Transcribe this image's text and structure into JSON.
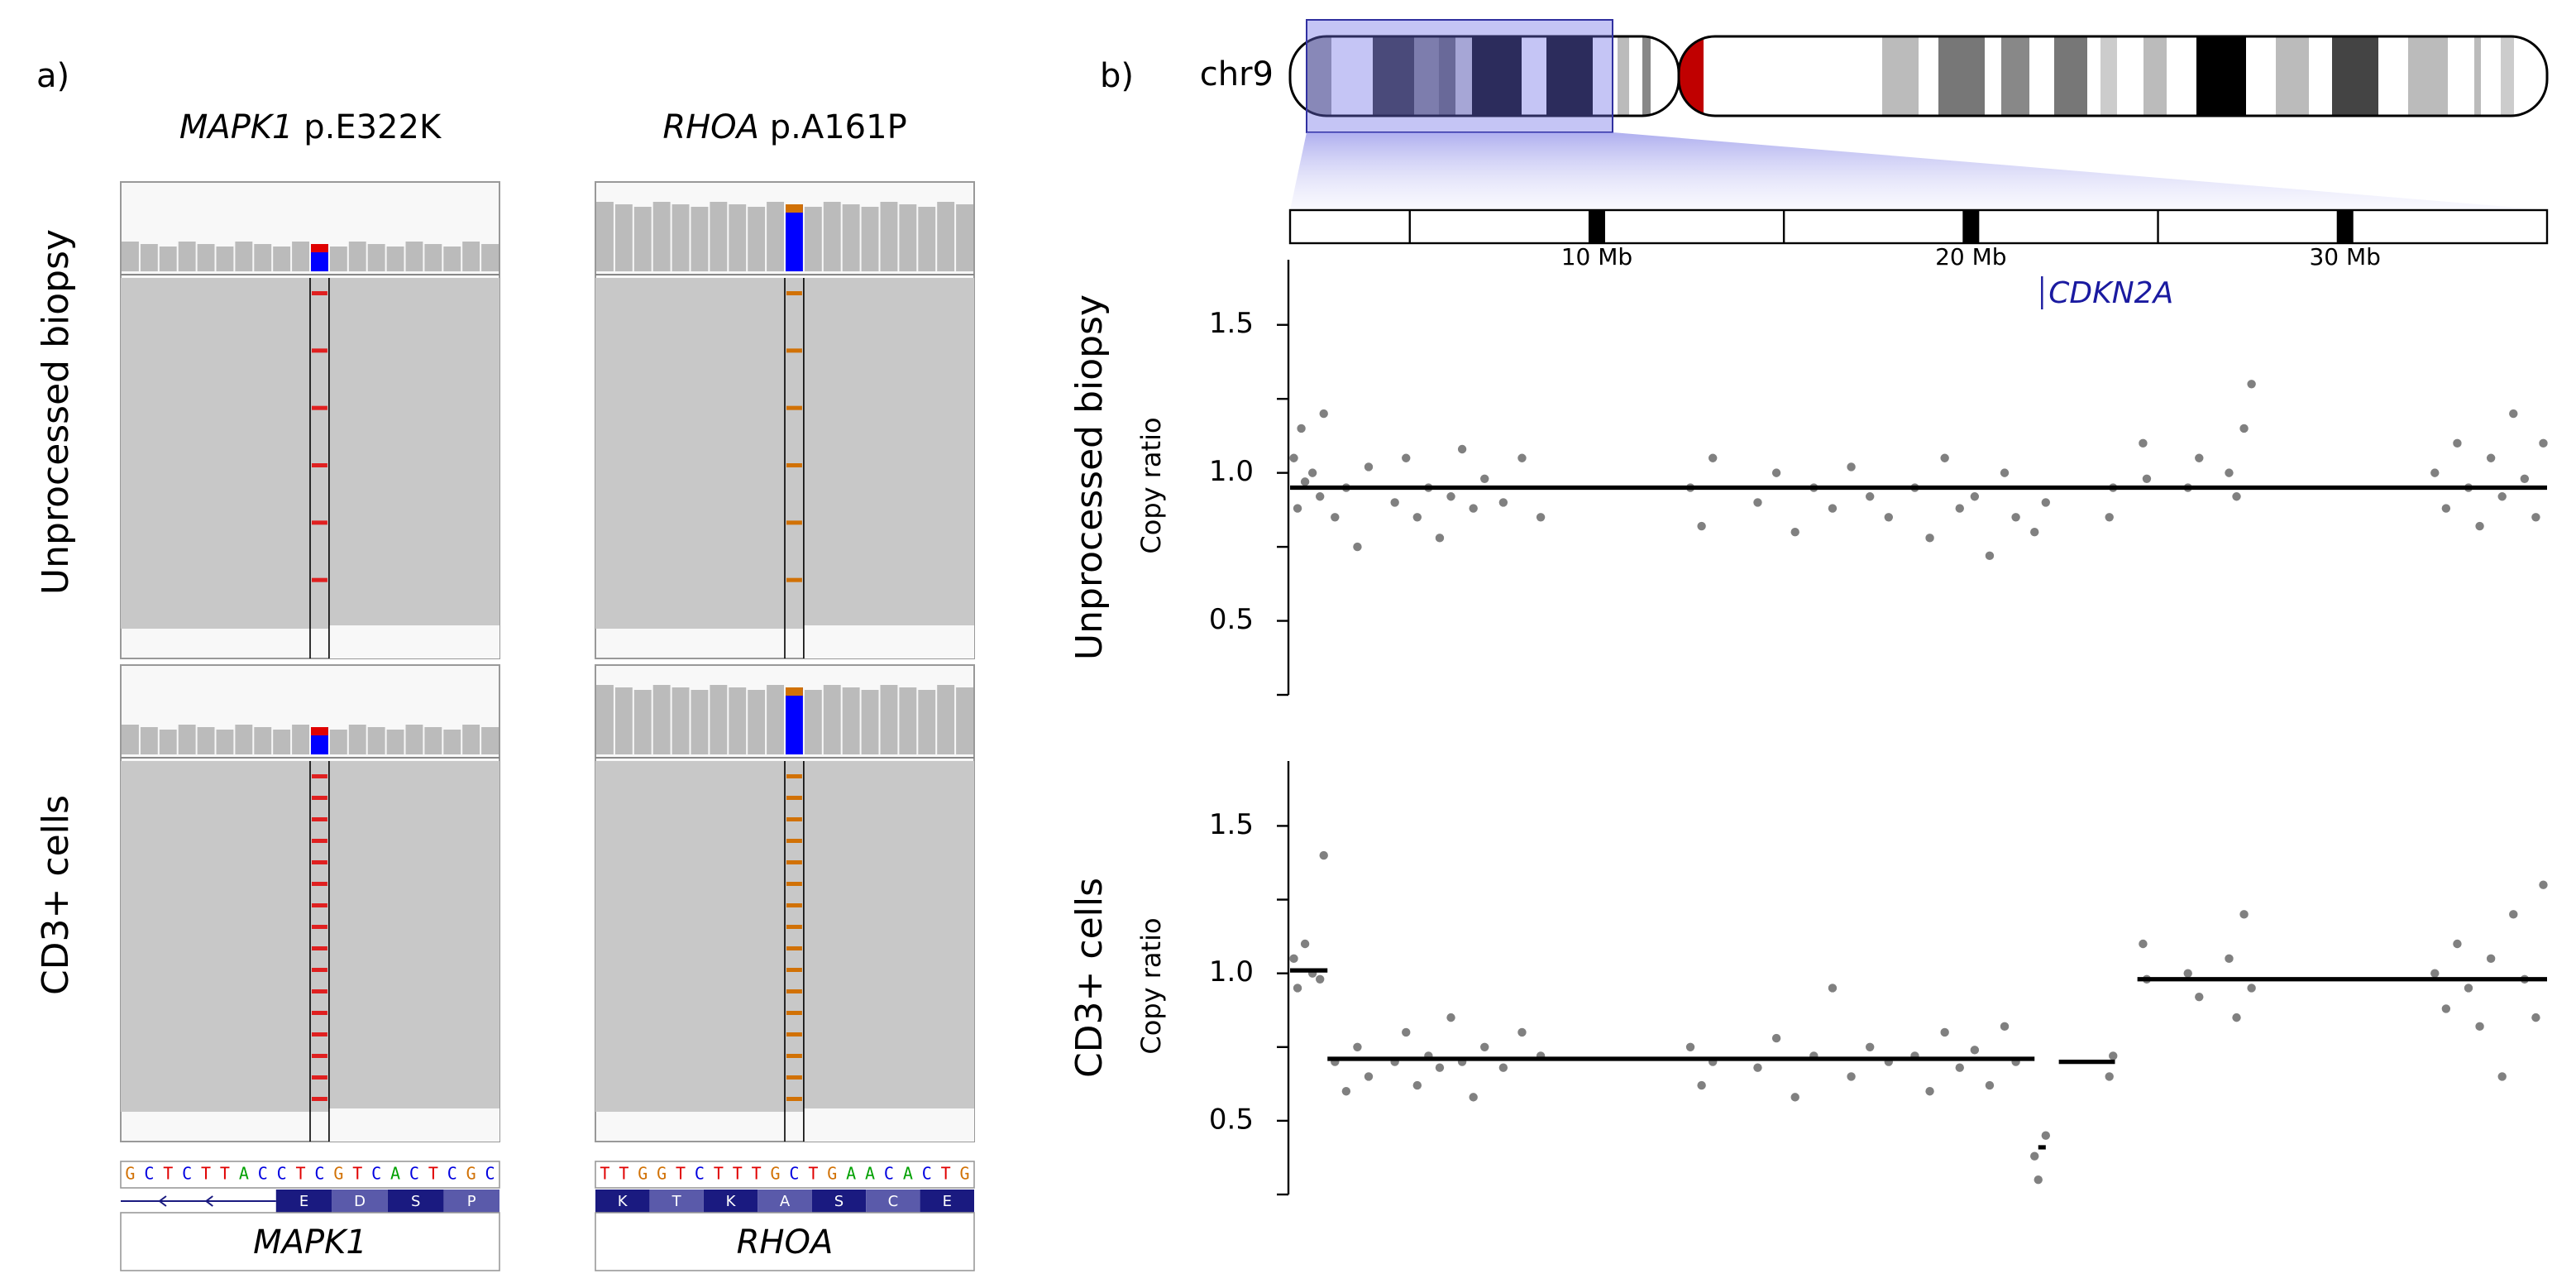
{
  "panel_a": {
    "label": "a)",
    "rows": [
      "Unprocessed biopsy",
      "CD3+ cells"
    ],
    "base_colors": {
      "A": "#00a000",
      "C": "#0000e0",
      "G": "#d17105",
      "T": "#e00000"
    },
    "genes": [
      {
        "gene": "MAPK1",
        "mutation": "p.E322K",
        "sequence": "GCTCTTACCTCGTCACTCGC",
        "amino_acids": [
          "E",
          "D",
          "S",
          "P"
        ],
        "track_label": "MAPK1"
      },
      {
        "gene": "RHOA",
        "mutation": "p.A161P",
        "sequence": "TTGGTCTTTGCTGAACACTG",
        "amino_acids": [
          "K",
          "T",
          "K",
          "A",
          "S",
          "C",
          "E"
        ],
        "track_label": "RHOA"
      }
    ]
  },
  "panel_b": {
    "label": "b)",
    "chromosome": "chr9",
    "ruler": {
      "xlim": [
        1.8,
        35.4
      ],
      "xticks": [
        {
          "value": 10,
          "label": "10 Mb"
        },
        {
          "value": 20,
          "label": "20 Mb"
        },
        {
          "value": 30,
          "label": "30 Mb"
        }
      ],
      "xminor": [
        5,
        15,
        25
      ]
    },
    "gene": {
      "label": "CDKN2A",
      "x": 21.9
    }
  },
  "chart_data": [
    {
      "type": "scatter",
      "title": "Unprocessed biopsy",
      "y_label": "Copy ratio",
      "color": "#808080",
      "xlim": [
        1.8,
        35.4
      ],
      "ylim": [
        0.25,
        1.72
      ],
      "yticks": [
        0.5,
        {
          "value": 1,
          "label": "1.0"
        },
        1.5
      ],
      "yminor": [
        0.25,
        0.75,
        1.25
      ],
      "x": [
        1.9,
        2.0,
        2.1,
        2.2,
        2.4,
        2.6,
        2.7,
        3.0,
        3.3,
        3.6,
        3.9,
        4.6,
        4.9,
        5.2,
        5.5,
        5.8,
        6.1,
        6.4,
        6.7,
        7.0,
        7.5,
        8.0,
        8.5,
        12.5,
        12.8,
        13.1,
        14.3,
        14.8,
        15.3,
        15.8,
        16.3,
        16.8,
        17.3,
        17.8,
        18.5,
        18.9,
        19.3,
        19.7,
        20.1,
        20.5,
        20.9,
        21.2,
        21.7,
        22.0,
        23.7,
        23.8,
        24.6,
        24.7,
        25.8,
        26.1,
        26.9,
        27.1,
        27.3,
        27.5,
        32.4,
        32.7,
        33.0,
        33.3,
        33.6,
        33.9,
        34.2,
        34.5,
        34.8,
        35.1,
        35.3
      ],
      "values": [
        1.05,
        0.88,
        1.15,
        0.97,
        1.0,
        0.92,
        1.2,
        0.85,
        0.95,
        0.75,
        1.02,
        0.9,
        1.05,
        0.85,
        0.95,
        0.78,
        0.92,
        1.08,
        0.88,
        0.98,
        0.9,
        1.05,
        0.85,
        0.95,
        0.82,
        1.05,
        0.9,
        1.0,
        0.8,
        0.95,
        0.88,
        1.02,
        0.92,
        0.85,
        0.95,
        0.78,
        1.05,
        0.88,
        0.92,
        0.72,
        1.0,
        0.85,
        0.8,
        0.9,
        0.85,
        0.95,
        1.1,
        0.98,
        0.95,
        1.05,
        1.0,
        0.92,
        1.15,
        1.3,
        1.0,
        0.88,
        1.1,
        0.95,
        0.82,
        1.05,
        0.92,
        1.2,
        0.98,
        0.85,
        1.1
      ],
      "segments": [
        {
          "start": 1.8,
          "end": 35.4,
          "value": 0.95
        }
      ]
    },
    {
      "type": "scatter",
      "title": "CD3+ cells",
      "y_label": "Copy ratio",
      "color": "#808080",
      "xlim": [
        1.8,
        35.4
      ],
      "ylim": [
        0.25,
        1.72
      ],
      "yticks": [
        0.5,
        {
          "value": 1,
          "label": "1.0"
        },
        1.5
      ],
      "yminor": [
        0.25,
        0.75,
        1.25
      ],
      "x": [
        1.9,
        2.0,
        2.2,
        2.4,
        2.6,
        2.7,
        3.0,
        3.3,
        3.6,
        3.9,
        4.6,
        4.9,
        5.2,
        5.5,
        5.8,
        6.1,
        6.4,
        6.7,
        7.0,
        7.5,
        8.0,
        8.5,
        12.5,
        12.8,
        13.1,
        14.3,
        14.8,
        15.3,
        15.8,
        16.3,
        16.8,
        17.3,
        17.8,
        18.5,
        18.9,
        19.3,
        19.7,
        20.1,
        20.5,
        20.9,
        21.2,
        21.7,
        21.8,
        22.0,
        23.7,
        23.8,
        24.6,
        24.7,
        25.8,
        26.1,
        26.9,
        27.1,
        27.3,
        27.5,
        32.4,
        32.7,
        33.0,
        33.3,
        33.6,
        33.9,
        34.2,
        34.5,
        34.8,
        35.1,
        35.3
      ],
      "values": [
        1.05,
        0.95,
        1.1,
        1.0,
        0.98,
        1.4,
        0.7,
        0.6,
        0.75,
        0.65,
        0.7,
        0.8,
        0.62,
        0.72,
        0.68,
        0.85,
        0.7,
        0.58,
        0.75,
        0.68,
        0.8,
        0.72,
        0.75,
        0.62,
        0.7,
        0.68,
        0.78,
        0.58,
        0.72,
        0.95,
        0.65,
        0.75,
        0.7,
        0.72,
        0.6,
        0.8,
        0.68,
        0.74,
        0.62,
        0.82,
        0.7,
        0.38,
        0.3,
        0.45,
        0.65,
        0.72,
        1.1,
        0.98,
        1.0,
        0.92,
        1.05,
        0.85,
        1.2,
        0.95,
        1.0,
        0.88,
        1.1,
        0.95,
        0.82,
        1.05,
        0.65,
        1.2,
        0.98,
        0.85,
        1.3
      ],
      "segments": [
        {
          "start": 1.8,
          "end": 2.8,
          "value": 1.01
        },
        {
          "start": 2.8,
          "end": 21.7,
          "value": 0.71
        },
        {
          "start": 21.8,
          "end": 22.0,
          "value": 0.41
        },
        {
          "start": 22.35,
          "end": 23.85,
          "value": 0.7
        },
        {
          "start": 24.45,
          "end": 35.4,
          "value": 0.98
        }
      ]
    }
  ]
}
